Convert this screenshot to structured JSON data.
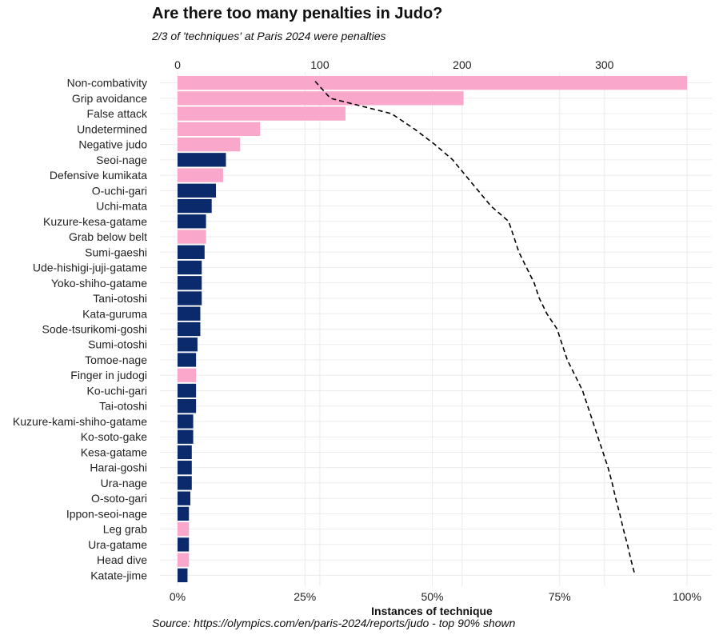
{
  "title": "Are there too many penalties in Judo?",
  "subtitle": "2/3 of 'techniques' at Paris 2024 were penalties",
  "caption": "Source: https://olympics.com/en/paris-2024/reports/judo - top 90% shown",
  "colors": {
    "penalty": "#F9A8CB",
    "technique": "#0B2A6B",
    "grid": "#EBEBEB",
    "cumulative_line": "#000000"
  },
  "chart_data": {
    "type": "bar",
    "orientation": "horizontal",
    "xlabel": "Instances of technique",
    "top_axis": {
      "ticks": [
        0,
        100,
        200,
        300
      ],
      "tick_labels": [
        "0",
        "100",
        "200",
        "300"
      ],
      "range": [
        0,
        358
      ]
    },
    "bottom_axis": {
      "ticks": [
        0,
        0.25,
        0.5,
        0.75,
        1.0
      ],
      "tick_labels": [
        "0%",
        "25%",
        "50%",
        "75%",
        "100%"
      ],
      "range": [
        0,
        1.05
      ]
    },
    "grid": true,
    "categories": [
      "Non-combativity",
      "Grip avoidance",
      "False attack",
      "Undetermined",
      "Negative judo",
      "Seoi-nage",
      "Defensive kumikata",
      "O-uchi-gari",
      "Uchi-mata",
      "Kuzure-kesa-gatame",
      "Grab below belt",
      "Sumi-gaeshi",
      "Ude-hishigi-juji-gatame",
      "Yoko-shiho-gatame",
      "Tani-otoshi",
      "Kata-guruma",
      "Sode-tsurikomi-goshi",
      "Sumi-otoshi",
      "Tomoe-nage",
      "Finger in judogi",
      "Ko-uchi-gari",
      "Tai-otoshi",
      "Kuzure-kami-shiho-gatame",
      "Ko-soto-gake",
      "Kesa-gatame",
      "Harai-goshi",
      "Ura-nage",
      "O-soto-gari",
      "Ippon-seoi-nage",
      "Leg grab",
      "Ura-gatame",
      "Head dive",
      "Katate-jime"
    ],
    "values": [
      358,
      201,
      118,
      58,
      44,
      34,
      32,
      27,
      24,
      20,
      20,
      19,
      17,
      17,
      17,
      16,
      16,
      14,
      13,
      13,
      13,
      13,
      11,
      11,
      10,
      10,
      10,
      9,
      8,
      8,
      8,
      8,
      7
    ],
    "is_penalty": [
      true,
      true,
      true,
      true,
      true,
      false,
      true,
      false,
      false,
      false,
      true,
      false,
      false,
      false,
      false,
      false,
      false,
      false,
      false,
      true,
      false,
      false,
      false,
      false,
      false,
      false,
      false,
      false,
      false,
      true,
      false,
      true,
      false
    ],
    "cumulative_share": [
      0.27,
      0.3,
      0.42,
      0.465,
      0.505,
      0.54,
      0.565,
      0.59,
      0.615,
      0.65,
      0.66,
      0.67,
      0.685,
      0.7,
      0.71,
      0.725,
      0.745,
      0.755,
      0.765,
      0.78,
      0.795,
      0.805,
      0.815,
      0.825,
      0.835,
      0.845,
      0.853,
      0.86,
      0.868,
      0.875,
      0.883,
      0.89,
      0.898
    ],
    "cumulative_line_style": "dashed"
  }
}
